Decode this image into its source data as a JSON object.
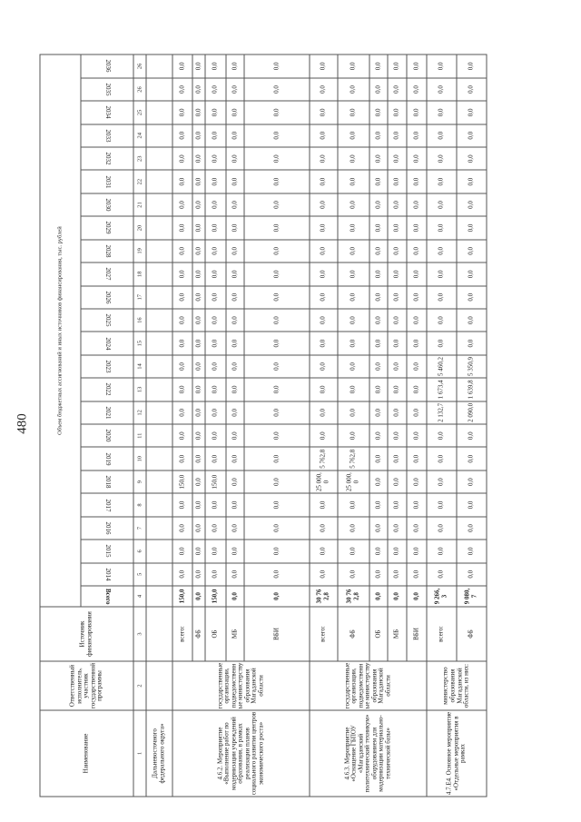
{
  "page_number": "480",
  "header": {
    "col_name": "Наименование",
    "col_responsible": "Ответственный исполнитель, участник государственной программы",
    "col_source": "Источник финансирования",
    "title": "Объем бюджетных ассигнований и иных источников финансирования, тыс. рублей",
    "col_total": "Всего",
    "years": [
      "2014",
      "2015",
      "2016",
      "2017",
      "2018",
      "2019",
      "2020",
      "2021",
      "2022",
      "2023",
      "2024",
      "2025",
      "2026",
      "2027",
      "2028",
      "2029",
      "2030",
      "2031",
      "2032",
      "2033",
      "2034",
      "2035",
      "2036"
    ],
    "numbers": [
      "1",
      "2",
      "3",
      "4",
      "5",
      "6",
      "7",
      "8",
      "9",
      "10",
      "11",
      "12",
      "13",
      "14",
      "15",
      "16",
      "17",
      "18",
      "19",
      "20",
      "21",
      "22",
      "23",
      "24",
      "25",
      "26",
      "26"
    ]
  },
  "continuation_row": {
    "name": "Дальневосточного федерального округа»"
  },
  "groups": [
    {
      "name": "4.6.2. Мероприятие «Выполнение работ по модернизации учреждений образования, в рамках реализации планов социального развития центров экономического роста»",
      "responsible": "государственные организации, подведомственные министерству образования Магаданской области",
      "rows": [
        {
          "source": "всего:",
          "values": [
            "150,0",
            "0,0",
            "0,0",
            "0,0",
            "0,0",
            "150,0",
            "0,0",
            "0,0",
            "0,0",
            "0,0",
            "0,0",
            "0,0",
            "0,0",
            "0,0",
            "0,0",
            "0,0",
            "0,0",
            "0,0",
            "0,0",
            "0,0",
            "0,0",
            "0,0",
            "0,0",
            "0,0"
          ]
        },
        {
          "source": "ФБ",
          "values": [
            "0,0",
            "0,0",
            "0,0",
            "0,0",
            "0,0",
            "0,0",
            "0,0",
            "0,0",
            "0,0",
            "0,0",
            "0,0",
            "0,0",
            "0,0",
            "0,0",
            "0,0",
            "0,0",
            "0,0",
            "0,0",
            "0,0",
            "0,0",
            "0,0",
            "0,0",
            "0,0",
            "0,0"
          ]
        },
        {
          "source": "ОБ",
          "values": [
            "150,0",
            "0,0",
            "0,0",
            "0,0",
            "0,0",
            "150,0",
            "0,0",
            "0,0",
            "0,0",
            "0,0",
            "0,0",
            "0,0",
            "0,0",
            "0,0",
            "0,0",
            "0,0",
            "0,0",
            "0,0",
            "0,0",
            "0,0",
            "0,0",
            "0,0",
            "0,0",
            "0,0"
          ]
        },
        {
          "source": "МБ",
          "values": [
            "0,0",
            "0,0",
            "0,0",
            "0,0",
            "0,0",
            "0,0",
            "0,0",
            "0,0",
            "0,0",
            "0,0",
            "0,0",
            "0,0",
            "0,0",
            "0,0",
            "0,0",
            "0,0",
            "0,0",
            "0,0",
            "0,0",
            "0,0",
            "0,0",
            "0,0",
            "0,0",
            "0,0"
          ]
        },
        {
          "source": "ВБИ",
          "values": [
            "0,0",
            "0,0",
            "0,0",
            "0,0",
            "0,0",
            "0,0",
            "0,0",
            "0,0",
            "0,0",
            "0,0",
            "0,0",
            "0,0",
            "0,0",
            "0,0",
            "0,0",
            "0,0",
            "0,0",
            "0,0",
            "0,0",
            "0,0",
            "0,0",
            "0,0",
            "0,0",
            "0,0"
          ]
        }
      ]
    },
    {
      "name": "4.6.3. Мероприятие «Оснащение ГБПОУ «Магаданский политехнический техникум» оборудованием для модернизации материально-технической базы»",
      "responsible": "государственные организации, подведомственные министерству образования Магаданской области",
      "rows": [
        {
          "source": "всего:",
          "values": [
            "30 762,8",
            "0,0",
            "0,0",
            "0,0",
            "0,0",
            "25 000,0",
            "5 762,8",
            "0,0",
            "0,0",
            "0,0",
            "0,0",
            "0,0",
            "0,0",
            "0,0",
            "0,0",
            "0,0",
            "0,0",
            "0,0",
            "0,0",
            "0,0",
            "0,0",
            "0,0",
            "0,0",
            "0,0"
          ]
        },
        {
          "source": "ФБ",
          "values": [
            "30 762,8",
            "0,0",
            "0,0",
            "0,0",
            "0,0",
            "25 000,0",
            "5 762,8",
            "0,0",
            "0,0",
            "0,0",
            "0,0",
            "0,0",
            "0,0",
            "0,0",
            "0,0",
            "0,0",
            "0,0",
            "0,0",
            "0,0",
            "0,0",
            "0,0",
            "0,0",
            "0,0",
            "0,0"
          ]
        },
        {
          "source": "ОБ",
          "values": [
            "0,0",
            "0,0",
            "0,0",
            "0,0",
            "0,0",
            "0,0",
            "0,0",
            "0,0",
            "0,0",
            "0,0",
            "0,0",
            "0,0",
            "0,0",
            "0,0",
            "0,0",
            "0,0",
            "0,0",
            "0,0",
            "0,0",
            "0,0",
            "0,0",
            "0,0",
            "0,0",
            "0,0"
          ]
        },
        {
          "source": "МБ",
          "values": [
            "0,0",
            "0,0",
            "0,0",
            "0,0",
            "0,0",
            "0,0",
            "0,0",
            "0,0",
            "0,0",
            "0,0",
            "0,0",
            "0,0",
            "0,0",
            "0,0",
            "0,0",
            "0,0",
            "0,0",
            "0,0",
            "0,0",
            "0,0",
            "0,0",
            "0,0",
            "0,0",
            "0,0"
          ]
        },
        {
          "source": "ВБИ",
          "values": [
            "0,0",
            "0,0",
            "0,0",
            "0,0",
            "0,0",
            "0,0",
            "0,0",
            "0,0",
            "0,0",
            "0,0",
            "0,0",
            "0,0",
            "0,0",
            "0,0",
            "0,0",
            "0,0",
            "0,0",
            "0,0",
            "0,0",
            "0,0",
            "0,0",
            "0,0",
            "0,0",
            "0,0"
          ]
        }
      ]
    },
    {
      "name": "4.7.Е4. Основное мероприятие «Отдельные мероприятия в рамках",
      "responsible": "министерство образования Магаданской области, из них:",
      "rows": [
        {
          "source": "всего:",
          "values": [
            "9 266,3",
            "0,0",
            "0,0",
            "0,0",
            "0,0",
            "0,0",
            "0,0",
            "0,0",
            "2 132,7",
            "1 673,4",
            "5 460,2",
            "0,0",
            "0,0",
            "0,0",
            "0,0",
            "0,0",
            "0,0",
            "0,0",
            "0,0",
            "0,0",
            "0,0",
            "0,0",
            "0,0",
            "0,0"
          ]
        },
        {
          "source": "ФБ",
          "values": [
            "9 080,7",
            "0,0",
            "0,0",
            "0,0",
            "0,0",
            "0,0",
            "0,0",
            "0,0",
            "2 090,0",
            "1 639,8",
            "5 350,9",
            "0,0",
            "0,0",
            "0,0",
            "0,0",
            "0,0",
            "0,0",
            "0,0",
            "0,0",
            "0,0",
            "0,0",
            "0,0",
            "0,0",
            "0,0"
          ]
        }
      ]
    }
  ]
}
